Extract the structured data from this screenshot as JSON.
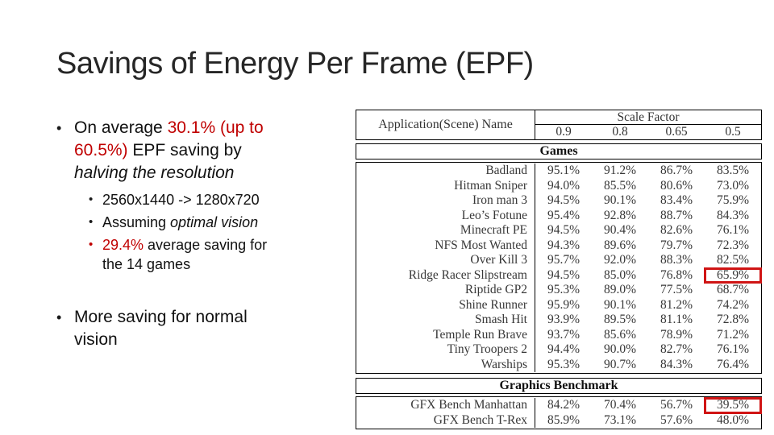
{
  "slide": {
    "title": "Savings of Energy Per Frame (EPF)",
    "bullet1": {
      "prefix": "On average ",
      "red_text": "30.1% (up to 60.5%)",
      "middle": " EPF saving by ",
      "italic_text": "halving the resolution"
    },
    "sub_bullets": {
      "resolution": "2560x1440 -> 1280x720",
      "assuming_prefix": "Assuming ",
      "assuming_italic": "optimal vision",
      "saving_red": "29.4%",
      "saving_rest": " average saving for the 14 games"
    },
    "bullet2": "More saving for normal vision",
    "colors": {
      "accent_red": "#c00000",
      "highlight_box_red": "#d01414",
      "text": "#111111"
    }
  },
  "table": {
    "name_header": "Application(Scene) Name",
    "group_header": "Scale Factor",
    "scale_columns": [
      "0.9",
      "0.8",
      "0.65",
      "0.5"
    ],
    "sections": [
      {
        "label": "Games",
        "rows": [
          {
            "name": "Badland",
            "values": [
              "95.1%",
              "91.2%",
              "86.7%",
              "83.5%"
            ],
            "highlight_col": null
          },
          {
            "name": "Hitman Sniper",
            "values": [
              "94.0%",
              "85.5%",
              "80.6%",
              "73.0%"
            ],
            "highlight_col": null
          },
          {
            "name": "Iron man 3",
            "values": [
              "94.5%",
              "90.1%",
              "83.4%",
              "75.9%"
            ],
            "highlight_col": null
          },
          {
            "name": "Leo’s Fotune",
            "values": [
              "95.4%",
              "92.8%",
              "88.7%",
              "84.3%"
            ],
            "highlight_col": null
          },
          {
            "name": "Minecraft PE",
            "values": [
              "94.5%",
              "90.4%",
              "82.6%",
              "76.1%"
            ],
            "highlight_col": null
          },
          {
            "name": "NFS Most Wanted",
            "values": [
              "94.3%",
              "89.6%",
              "79.7%",
              "72.3%"
            ],
            "highlight_col": null
          },
          {
            "name": "Over Kill 3",
            "values": [
              "95.7%",
              "92.0%",
              "88.3%",
              "82.5%"
            ],
            "highlight_col": null
          },
          {
            "name": "Ridge Racer Slipstream",
            "values": [
              "94.5%",
              "85.0%",
              "76.8%",
              "65.9%"
            ],
            "highlight_col": 3
          },
          {
            "name": "Riptide GP2",
            "values": [
              "95.3%",
              "89.0%",
              "77.5%",
              "68.7%"
            ],
            "highlight_col": null
          },
          {
            "name": "Shine Runner",
            "values": [
              "95.9%",
              "90.1%",
              "81.2%",
              "74.2%"
            ],
            "highlight_col": null
          },
          {
            "name": "Smash Hit",
            "values": [
              "93.9%",
              "89.5%",
              "81.1%",
              "72.8%"
            ],
            "highlight_col": null
          },
          {
            "name": "Temple Run Brave",
            "values": [
              "93.7%",
              "85.6%",
              "78.9%",
              "71.2%"
            ],
            "highlight_col": null
          },
          {
            "name": "Tiny Troopers 2",
            "values": [
              "94.4%",
              "90.0%",
              "82.7%",
              "76.1%"
            ],
            "highlight_col": null
          },
          {
            "name": "Warships",
            "values": [
              "95.3%",
              "90.7%",
              "84.3%",
              "76.4%"
            ],
            "highlight_col": null
          }
        ]
      },
      {
        "label": "Graphics Benchmark",
        "rows": [
          {
            "name": "GFX Bench Manhattan",
            "values": [
              "84.2%",
              "70.4%",
              "56.7%",
              "39.5%"
            ],
            "highlight_col": 3
          },
          {
            "name": "GFX Bench T-Rex",
            "values": [
              "85.9%",
              "73.1%",
              "57.6%",
              "48.0%"
            ],
            "highlight_col": null
          }
        ]
      }
    ]
  }
}
